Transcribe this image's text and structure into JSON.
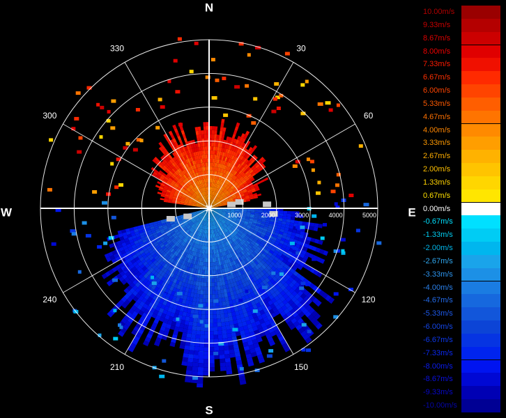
{
  "chart_data": {
    "type": "heatmap",
    "projection": "polar (PPI), north up, bearings clockwise",
    "compass": {
      "north": "N",
      "east": "E",
      "south": "S",
      "west": "W"
    },
    "bearing_labels": [
      "30",
      "60",
      "120",
      "150",
      "210",
      "240",
      "300",
      "330"
    ],
    "range_labels": [
      "1000",
      "2000",
      "3000",
      "4000",
      "5000"
    ],
    "range_max": 5000,
    "range_rings": [
      1000,
      2000,
      3000,
      4000,
      5000
    ],
    "radial_lines_deg": [
      0,
      30,
      60,
      90,
      120,
      150,
      180,
      210,
      240,
      270,
      300,
      330
    ],
    "background": "#000000",
    "grid_color": "#ffffff",
    "no_data_color": "#c8c8c8",
    "colorbar": {
      "unit": "m/s",
      "labels": [
        "10.00m/s",
        "9.33m/s",
        "8.67m/s",
        "8.00m/s",
        "7.33m/s",
        "6.67m/s",
        "6.00m/s",
        "5.33m/s",
        "4.67m/s",
        "4.00m/s",
        "3.33m/s",
        "2.67m/s",
        "2.00m/s",
        "1.33m/s",
        "0.67m/s",
        "0.00m/s",
        "-0.67m/s",
        "-1.33m/s",
        "-2.00m/s",
        "-2.67m/s",
        "-3.33m/s",
        "-4.00m/s",
        "-4.67m/s",
        "-5.33m/s",
        "-6.00m/s",
        "-6.67m/s",
        "-7.33m/s",
        "-8.00m/s",
        "-8.67m/s",
        "-9.33m/s",
        "-10.00m/s"
      ],
      "values": [
        10.0,
        9.33,
        8.67,
        8.0,
        7.33,
        6.67,
        6.0,
        5.33,
        4.67,
        4.0,
        3.33,
        2.67,
        2.0,
        1.33,
        0.67,
        0.0,
        -0.67,
        -1.33,
        -2.0,
        -2.67,
        -3.33,
        -4.0,
        -4.67,
        -5.33,
        -6.0,
        -6.67,
        -7.33,
        -8.0,
        -8.67,
        -9.33,
        -10.0
      ],
      "colors": [
        "#9a0000",
        "#b40000",
        "#cc0000",
        "#e00000",
        "#f01000",
        "#ff2a00",
        "#ff4400",
        "#ff5e00",
        "#ff7400",
        "#ff8a00",
        "#ff9e00",
        "#ffb200",
        "#ffc400",
        "#ffd600",
        "#ffe600",
        "#ffffff",
        "#00e0ff",
        "#00ccf4",
        "#00b6ee",
        "#1aa4ea",
        "#1c90e6",
        "#1a7ce2",
        "#1668de",
        "#1256da",
        "#0c44d6",
        "#0634e2",
        "#0024ee",
        "#0014f0",
        "#0008d4",
        "#0000b4",
        "#000094"
      ],
      "label_colors": [
        "#b00000",
        "#c80000",
        "#dc0000",
        "#ee0000",
        "#ff1a00",
        "#ff3000",
        "#ff4400",
        "#ff5a00",
        "#ff7000",
        "#ff8600",
        "#ff9a00",
        "#ffae00",
        "#ffc000",
        "#ffd200",
        "#ffe000",
        "#ffffff",
        "#00e0ff",
        "#00ccf0",
        "#00b6ea",
        "#30a8f0",
        "#2c94ee",
        "#2a80ea",
        "#246cec",
        "#1c58e8",
        "#1446e8",
        "#0c38ec",
        "#0a28f0",
        "#0a1cf0",
        "#0a10e0",
        "#0808c8",
        "#0606a8"
      ]
    },
    "field": {
      "description": "Doppler radial velocity: positive (red/orange) to the north, negative (blue) to the south",
      "sectors": [
        {
          "from_deg": 278,
          "to_deg": 440,
          "value_range": [
            0.67,
            8.67
          ],
          "max_range": 2400
        },
        {
          "from_deg": 90,
          "to_deg": 255,
          "value_range": [
            -10.0,
            -0.67
          ],
          "max_range": 4700
        }
      ]
    }
  }
}
